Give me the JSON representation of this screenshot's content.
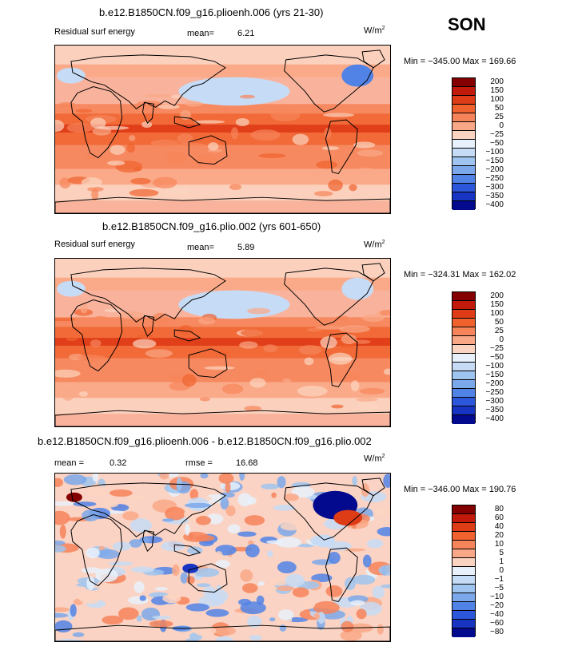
{
  "season": "SON",
  "units_base": "W/m",
  "units_exp": "2",
  "colors": {
    "pos_scale": [
      "#840000",
      "#c11a0b",
      "#de3b17",
      "#f0622d",
      "#f6845a",
      "#f9a887",
      "#fbd4c1",
      "#e8f1fb",
      "#c6dbf5",
      "#9fc4ef",
      "#7ba8ea",
      "#5182e6",
      "#2d57db",
      "#1735c2",
      "#030a8e"
    ],
    "land_line": "#000000"
  },
  "chart_data": [
    {
      "type": "heatmap",
      "title": "b.e12.B1850CN.f09_g16.plioenh.006 (yrs 21-30)",
      "field": "Residual surf energy",
      "mean_label": "mean=",
      "mean": "6.21",
      "minmax": "Min = −345.00 Max = 169.66",
      "min": -345.0,
      "max": 169.66,
      "levels": [
        "200",
        "150",
        "100",
        "50",
        "25",
        "0",
        "−25",
        "−50",
        "−100",
        "−150",
        "−200",
        "−250",
        "−300",
        "−350",
        "−400"
      ]
    },
    {
      "type": "heatmap",
      "title": "b.e12.B1850CN.f09_g16.plio.002 (yrs 601-650)",
      "field": "Residual surf energy",
      "mean_label": "mean=",
      "mean": "5.89",
      "minmax": "Min = −324.31 Max = 162.02",
      "min": -324.31,
      "max": 162.02,
      "levels": [
        "200",
        "150",
        "100",
        "50",
        "25",
        "0",
        "−25",
        "−50",
        "−100",
        "−150",
        "−200",
        "−250",
        "−300",
        "−350",
        "−400"
      ]
    },
    {
      "type": "heatmap",
      "title": "b.e12.B1850CN.f09_g16.plioenh.006 - b.e12.B1850CN.f09_g16.plio.002",
      "mean_label": "mean =",
      "mean": "0.32",
      "rmse_label": "rmse =",
      "rmse": "16.68",
      "minmax": "Min = −346.00 Max = 190.76",
      "min": -346.0,
      "max": 190.76,
      "levels": [
        "80",
        "60",
        "40",
        "20",
        "10",
        "5",
        "1",
        "0",
        "−1",
        "−5",
        "−10",
        "−20",
        "−40",
        "−60",
        "−80"
      ]
    }
  ]
}
